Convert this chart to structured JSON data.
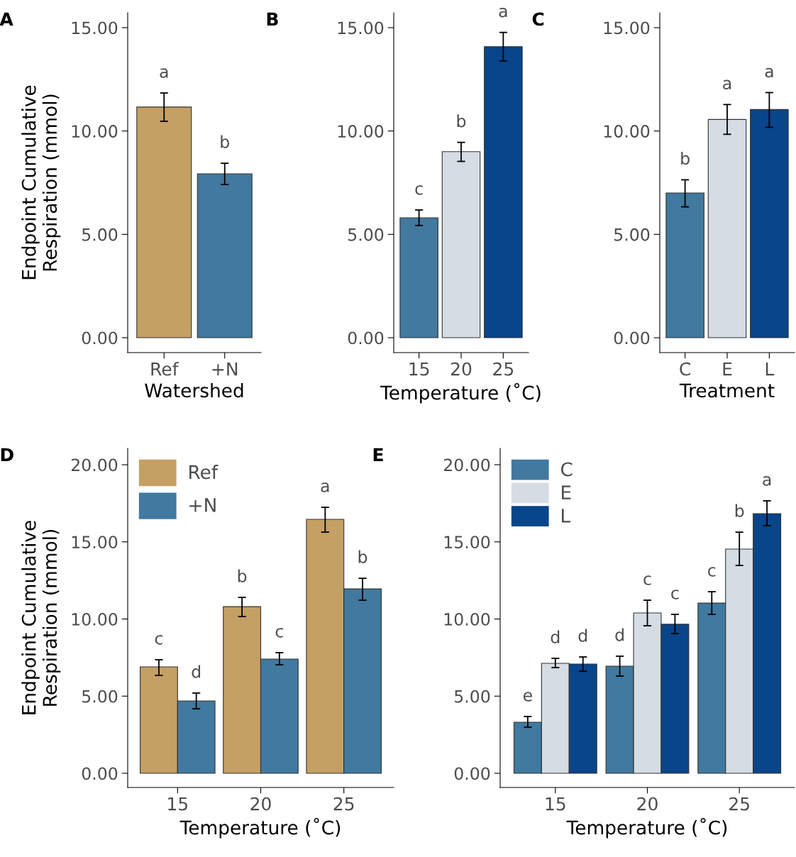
{
  "chart_data": [
    {
      "type": "bar",
      "annotations": [
        "A"
      ],
      "xlabel": "Watershed",
      "ylabel": "Endpoint Cumulative\nRespiration (mmol)",
      "categories": [
        "Ref",
        "+N"
      ],
      "ylim": [
        -0.72,
        15.72
      ],
      "yticks": [
        {
          "value": 0,
          "label": "0.00"
        },
        {
          "value": 5,
          "label": "5.00"
        },
        {
          "value": 10,
          "label": "10.00"
        },
        {
          "value": 15,
          "label": "15.00"
        }
      ],
      "grid": false,
      "legend": false,
      "series": [
        {
          "colors": [
            "#c4a064",
            "#41799f"
          ],
          "values": [
            11.16,
            7.93
          ],
          "errors": [
            [
              10.47,
              11.84
            ],
            [
              7.41,
              8.44
            ]
          ],
          "value_labels": [
            "a",
            "b"
          ]
        }
      ]
    },
    {
      "type": "bar",
      "annotations": [
        "B"
      ],
      "xlabel": "Temperature (˚C)",
      "categories": [
        "15",
        "20",
        "25"
      ],
      "ylim": [
        -0.72,
        15.72
      ],
      "yticks": [
        {
          "value": 0,
          "label": "0.00"
        },
        {
          "value": 5,
          "label": "5.00"
        },
        {
          "value": 10,
          "label": "10.00"
        },
        {
          "value": 15,
          "label": "15.00"
        }
      ],
      "grid": false,
      "legend": false,
      "series": [
        {
          "colors": [
            "#41799f",
            "#d5dce4",
            "#08458a"
          ],
          "values": [
            5.8,
            9.0,
            14.08
          ],
          "errors": [
            [
              5.43,
              6.18
            ],
            [
              8.53,
              9.45
            ],
            [
              13.39,
              14.77
            ]
          ],
          "value_labels": [
            "c",
            "b",
            "a"
          ]
        }
      ]
    },
    {
      "type": "bar",
      "annotations": [
        "C"
      ],
      "xlabel": "Treatment",
      "categories": [
        "C",
        "E",
        "L"
      ],
      "ylim": [
        -0.72,
        15.72
      ],
      "yticks": [
        {
          "value": 0,
          "label": "0.00"
        },
        {
          "value": 5,
          "label": "5.00"
        },
        {
          "value": 10,
          "label": "10.00"
        },
        {
          "value": 15,
          "label": "15.00"
        }
      ],
      "grid": false,
      "legend": false,
      "series": [
        {
          "colors": [
            "#41799f",
            "#d5dce4",
            "#08458a"
          ],
          "values": [
            7.0,
            10.56,
            11.04
          ],
          "errors": [
            [
              6.33,
              7.64
            ],
            [
              9.84,
              11.28
            ],
            [
              10.18,
              11.86
            ]
          ],
          "value_labels": [
            "b",
            "a",
            "a"
          ]
        }
      ]
    },
    {
      "type": "bar",
      "annotations": [
        "D"
      ],
      "xlabel": "Temperature (˚C)",
      "ylabel": "Endpoint Cumulative\nRespiration (mmol)",
      "categories": [
        "15",
        "20",
        "25"
      ],
      "ylim": [
        -0.92,
        21.06
      ],
      "yticks": [
        {
          "value": 0,
          "label": "0.00"
        },
        {
          "value": 5,
          "label": "5.00"
        },
        {
          "value": 10,
          "label": "10.00"
        },
        {
          "value": 15,
          "label": "15.00"
        },
        {
          "value": 20,
          "label": "20.00"
        }
      ],
      "grid": false,
      "legend": "top left",
      "series": [
        {
          "name": "Ref",
          "color": "#c4a064",
          "values": [
            6.9,
            10.8,
            16.46
          ],
          "errors": [
            [
              6.34,
              7.36
            ],
            [
              10.16,
              11.4
            ],
            [
              15.63,
              17.24
            ]
          ],
          "value_labels": [
            "c",
            "b",
            "a"
          ]
        },
        {
          "name": "+N",
          "color": "#41799f",
          "values": [
            4.69,
            7.4,
            11.95
          ],
          "errors": [
            [
              4.18,
              5.2
            ],
            [
              7.03,
              7.82
            ],
            [
              11.22,
              12.64
            ]
          ],
          "value_labels": [
            "d",
            "c",
            "b"
          ]
        }
      ]
    },
    {
      "type": "bar",
      "annotations": [
        "E"
      ],
      "xlabel": "Temperature (˚C)",
      "categories": [
        "15",
        "20",
        "25"
      ],
      "ylim": [
        -0.92,
        21.06
      ],
      "yticks": [
        {
          "value": 0,
          "label": "0.00"
        },
        {
          "value": 5,
          "label": "5.00"
        },
        {
          "value": 10,
          "label": "10.00"
        },
        {
          "value": 15,
          "label": "15.00"
        },
        {
          "value": 20,
          "label": "20.00"
        }
      ],
      "grid": false,
      "legend": "top left",
      "series": [
        {
          "name": "C",
          "color": "#41799f",
          "values": [
            3.31,
            6.94,
            11.03
          ],
          "errors": [
            [
              2.99,
              3.68
            ],
            [
              6.3,
              7.59
            ],
            [
              10.3,
              11.77
            ]
          ],
          "value_labels": [
            "e",
            "d",
            "c"
          ]
        },
        {
          "name": "E",
          "color": "#d5dce4",
          "values": [
            7.13,
            10.39,
            14.53
          ],
          "errors": [
            [
              6.85,
              7.45
            ],
            [
              9.56,
              11.22
            ],
            [
              13.47,
              15.63
            ]
          ],
          "value_labels": [
            "d",
            "c",
            "b"
          ]
        },
        {
          "name": "L",
          "color": "#08458a",
          "values": [
            7.08,
            9.66,
            16.83
          ],
          "errors": [
            [
              6.62,
              7.54
            ],
            [
              9.06,
              10.3
            ],
            [
              16.05,
              17.66
            ]
          ],
          "value_labels": [
            "d",
            "c",
            "a"
          ]
        }
      ]
    }
  ]
}
